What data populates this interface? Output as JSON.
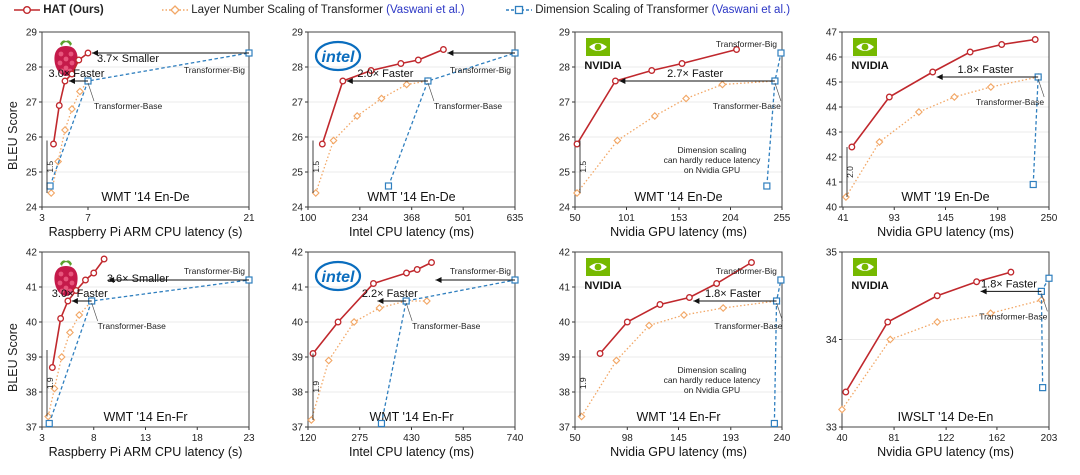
{
  "legend": {
    "hat_label": "HAT (Ours)",
    "layer_label": "Layer Number Scaling of Transformer",
    "dim_label": "Dimension Scaling of Transformer",
    "citation": "(Vaswani et al.)"
  },
  "colors": {
    "hat": "#c0282d",
    "layer": "#f2a766",
    "dim": "#2f7fbf"
  },
  "ylabel": "BLEU Score",
  "chart_data": [
    {
      "type": "line",
      "title": "WMT '14 En-De",
      "xlabel": "Raspberry Pi ARM CPU latency (s)",
      "xlim": [
        3,
        21
      ],
      "ylim": [
        24,
        29
      ],
      "xticks": [
        {
          "v": 3,
          "t": "3"
        },
        {
          "v": 7,
          "t": "7"
        },
        {
          "v": 21,
          "t": "21"
        }
      ],
      "yticks": [
        {
          "v": 24,
          "t": "24"
        },
        {
          "v": 25,
          "t": "25"
        },
        {
          "v": 26,
          "t": "26"
        },
        {
          "v": 27,
          "t": "27"
        },
        {
          "v": 28,
          "t": "28"
        },
        {
          "v": 29,
          "t": "29"
        }
      ],
      "logo": "raspberry-pi",
      "series": [
        {
          "name": "HAT (Ours)",
          "x": [
            4.0,
            4.5,
            5.0,
            5.6,
            6.2,
            7.0
          ],
          "y": [
            25.8,
            26.9,
            27.6,
            27.8,
            28.2,
            28.4
          ]
        },
        {
          "name": "Layer Number Scaling of Transformer",
          "x": [
            3.8,
            4.4,
            5.0,
            5.6,
            6.3,
            7.0
          ],
          "y": [
            24.4,
            25.3,
            26.2,
            26.8,
            27.3,
            27.6
          ]
        },
        {
          "name": "Dimension Scaling of Transformer",
          "x": [
            3.7,
            7.0,
            21.0
          ],
          "y": [
            24.6,
            27.6,
            28.4
          ]
        }
      ],
      "labels": [
        {
          "text": "Transformer-Base",
          "x": 7,
          "y": 27.6
        },
        {
          "text": "Transformer-Big",
          "x": 21,
          "y": 28.4
        }
      ],
      "annotations": [
        "3.0× Faster",
        "3.7× Smaller"
      ],
      "gain": "1.5"
    },
    {
      "type": "line",
      "title": "WMT '14 En-De",
      "xlabel": "Intel CPU latency (ms)",
      "xlim": [
        100,
        635
      ],
      "ylim": [
        24,
        29
      ],
      "xticks": [
        {
          "v": 100,
          "t": "100"
        },
        {
          "v": 234,
          "t": "234"
        },
        {
          "v": 368,
          "t": "368"
        },
        {
          "v": 501,
          "t": "501"
        },
        {
          "v": 635,
          "t": "635"
        }
      ],
      "yticks": [
        {
          "v": 24,
          "t": "24"
        },
        {
          "v": 25,
          "t": "25"
        },
        {
          "v": 26,
          "t": "26"
        },
        {
          "v": 27,
          "t": "27"
        },
        {
          "v": 28,
          "t": "28"
        },
        {
          "v": 29,
          "t": "29"
        }
      ],
      "logo": "intel",
      "series": [
        {
          "name": "HAT (Ours)",
          "x": [
            137,
            190,
            263,
            340,
            385,
            450
          ],
          "y": [
            25.8,
            27.6,
            27.9,
            28.1,
            28.2,
            28.5
          ]
        },
        {
          "name": "Layer Number Scaling of Transformer",
          "x": [
            120,
            166,
            227,
            290,
            355,
            410
          ],
          "y": [
            24.4,
            25.9,
            26.6,
            27.1,
            27.5,
            27.6
          ]
        },
        {
          "name": "Dimension Scaling of Transformer",
          "x": [
            308,
            410,
            635
          ],
          "y": [
            24.6,
            27.6,
            28.4
          ]
        }
      ],
      "labels": [
        {
          "text": "Transformer-Base",
          "x": 410,
          "y": 27.6
        },
        {
          "text": "Transformer-Big",
          "x": 635,
          "y": 28.4
        }
      ],
      "annotations": [
        "2.0× Faster"
      ],
      "gain": "1.5"
    },
    {
      "type": "line",
      "title": "WMT '14 En-De",
      "xlabel": "Nvidia GPU latency (ms)",
      "xlim": [
        50,
        255
      ],
      "ylim": [
        24,
        29
      ],
      "xticks": [
        {
          "v": 50,
          "t": "50"
        },
        {
          "v": 101,
          "t": "101"
        },
        {
          "v": 153,
          "t": "153"
        },
        {
          "v": 204,
          "t": "204"
        },
        {
          "v": 255,
          "t": "255"
        }
      ],
      "yticks": [
        {
          "v": 24,
          "t": "24"
        },
        {
          "v": 25,
          "t": "25"
        },
        {
          "v": 26,
          "t": "26"
        },
        {
          "v": 27,
          "t": "27"
        },
        {
          "v": 28,
          "t": "28"
        },
        {
          "v": 29,
          "t": "29"
        }
      ],
      "logo": "nvidia",
      "series": [
        {
          "name": "HAT (Ours)",
          "x": [
            52,
            90,
            126,
            156,
            210
          ],
          "y": [
            25.8,
            27.6,
            27.9,
            28.1,
            28.5
          ]
        },
        {
          "name": "Layer Number Scaling of Transformer",
          "x": [
            52,
            92,
            129,
            160,
            196,
            248
          ],
          "y": [
            24.4,
            25.9,
            26.6,
            27.1,
            27.5,
            27.6
          ]
        },
        {
          "name": "Dimension Scaling of Transformer",
          "x": [
            240,
            248,
            254
          ],
          "y": [
            24.6,
            27.6,
            28.4
          ]
        }
      ],
      "labels": [
        {
          "text": "Transformer-Base",
          "x": 248,
          "y": 27.6
        },
        {
          "text": "Transformer-Big",
          "x": 254,
          "y": 28.4
        }
      ],
      "annotations": [
        "2.7× Faster",
        "Dimension scaling",
        "can hardly reduce latency",
        "on Nvidia GPU"
      ],
      "gain": "1.5"
    },
    {
      "type": "line",
      "title": "WMT '19 En-De",
      "xlabel": "Nvidia GPU latency (ms)",
      "xlim": [
        40,
        250
      ],
      "ylim": [
        40,
        47
      ],
      "xticks": [
        {
          "v": 41,
          "t": "41"
        },
        {
          "v": 93,
          "t": "93"
        },
        {
          "v": 145,
          "t": "145"
        },
        {
          "v": 198,
          "t": "198"
        },
        {
          "v": 250,
          "t": "250"
        }
      ],
      "yticks": [
        {
          "v": 40,
          "t": "40"
        },
        {
          "v": 41,
          "t": "41"
        },
        {
          "v": 42,
          "t": "42"
        },
        {
          "v": 43,
          "t": "43"
        },
        {
          "v": 44,
          "t": "44"
        },
        {
          "v": 45,
          "t": "45"
        },
        {
          "v": 46,
          "t": "46"
        },
        {
          "v": 47,
          "t": "47"
        }
      ],
      "logo": "nvidia",
      "series": [
        {
          "name": "HAT (Ours)",
          "x": [
            50,
            88,
            132,
            170,
            202,
            236
          ],
          "y": [
            42.4,
            44.4,
            45.4,
            46.2,
            46.5,
            46.7
          ]
        },
        {
          "name": "Layer Number Scaling of Transformer",
          "x": [
            44,
            78,
            118,
            154,
            191,
            239
          ],
          "y": [
            40.4,
            42.6,
            43.8,
            44.4,
            44.8,
            45.2
          ]
        },
        {
          "name": "Dimension Scaling of Transformer",
          "x": [
            234,
            239
          ],
          "y": [
            40.9,
            45.2
          ]
        }
      ],
      "labels": [
        {
          "text": "Transformer-Base",
          "x": 239,
          "y": 45.2
        }
      ],
      "annotations": [
        "1.8× Faster"
      ],
      "gain": "2.0"
    },
    {
      "type": "line",
      "title": "WMT '14 En-Fr",
      "xlabel": "Raspberry Pi ARM CPU latency (s)",
      "xlim": [
        3,
        23
      ],
      "ylim": [
        37,
        42
      ],
      "xticks": [
        {
          "v": 3,
          "t": "3"
        },
        {
          "v": 8,
          "t": "8"
        },
        {
          "v": 13,
          "t": "13"
        },
        {
          "v": 18,
          "t": "18"
        },
        {
          "v": 23,
          "t": "23"
        }
      ],
      "yticks": [
        {
          "v": 37,
          "t": "37"
        },
        {
          "v": 38,
          "t": "38"
        },
        {
          "v": 39,
          "t": "39"
        },
        {
          "v": 40,
          "t": "40"
        },
        {
          "v": 41,
          "t": "41"
        },
        {
          "v": 42,
          "t": "42"
        }
      ],
      "logo": "raspberry-pi",
      "series": [
        {
          "name": "HAT (Ours)",
          "x": [
            4.0,
            4.8,
            5.5,
            6.3,
            7.2,
            8.0,
            9.0
          ],
          "y": [
            38.7,
            40.1,
            40.6,
            40.9,
            41.2,
            41.4,
            41.8
          ]
        },
        {
          "name": "Layer Number Scaling of Transformer",
          "x": [
            3.6,
            4.2,
            4.9,
            5.7,
            6.6,
            7.8
          ],
          "y": [
            37.3,
            38.1,
            39.0,
            39.7,
            40.2,
            40.6
          ]
        },
        {
          "name": "Dimension Scaling of Transformer",
          "x": [
            3.7,
            7.8,
            23.0
          ],
          "y": [
            37.1,
            40.6,
            41.2
          ]
        }
      ],
      "labels": [
        {
          "text": "Transformer-Base",
          "x": 7.8,
          "y": 40.6
        },
        {
          "text": "Transformer-Big",
          "x": 23,
          "y": 41.2
        }
      ],
      "annotations": [
        "3.0× Faster",
        "3.6× Smaller"
      ],
      "gain": "1.9"
    },
    {
      "type": "line",
      "title": "WMT '14 En-Fr",
      "xlabel": "Intel CPU latency (ms)",
      "xlim": [
        120,
        740
      ],
      "ylim": [
        37,
        42
      ],
      "xticks": [
        {
          "v": 120,
          "t": "120"
        },
        {
          "v": 275,
          "t": "275"
        },
        {
          "v": 430,
          "t": "430"
        },
        {
          "v": 585,
          "t": "585"
        },
        {
          "v": 740,
          "t": "740"
        }
      ],
      "yticks": [
        {
          "v": 37,
          "t": "37"
        },
        {
          "v": 38,
          "t": "38"
        },
        {
          "v": 39,
          "t": "39"
        },
        {
          "v": 40,
          "t": "40"
        },
        {
          "v": 41,
          "t": "41"
        },
        {
          "v": 42,
          "t": "42"
        }
      ],
      "logo": "intel",
      "series": [
        {
          "name": "HAT (Ours)",
          "x": [
            135,
            210,
            316,
            415,
            447,
            490
          ],
          "y": [
            39.1,
            40.0,
            41.1,
            41.4,
            41.5,
            41.7
          ]
        },
        {
          "name": "Layer Number Scaling of Transformer",
          "x": [
            130,
            182,
            258,
            334,
            414,
            476
          ],
          "y": [
            37.2,
            38.9,
            40.0,
            40.4,
            40.6,
            40.6
          ]
        },
        {
          "name": "Dimension Scaling of Transformer",
          "x": [
            340,
            414,
            740
          ],
          "y": [
            37.1,
            40.6,
            41.2
          ]
        }
      ],
      "labels": [
        {
          "text": "Transformer-Base",
          "x": 414,
          "y": 40.6
        },
        {
          "text": "Transformer-Big",
          "x": 740,
          "y": 41.2
        }
      ],
      "annotations": [
        "2.2× Faster"
      ],
      "gain": "1.9"
    },
    {
      "type": "line",
      "title": "WMT '14 En-Fr",
      "xlabel": "Nvidia GPU latency (ms)",
      "xlim": [
        50,
        240
      ],
      "ylim": [
        37,
        42
      ],
      "xticks": [
        {
          "v": 50,
          "t": "50"
        },
        {
          "v": 98,
          "t": "98"
        },
        {
          "v": 145,
          "t": "145"
        },
        {
          "v": 193,
          "t": "193"
        },
        {
          "v": 240,
          "t": "240"
        }
      ],
      "yticks": [
        {
          "v": 37,
          "t": "37"
        },
        {
          "v": 38,
          "t": "38"
        },
        {
          "v": 39,
          "t": "39"
        },
        {
          "v": 40,
          "t": "40"
        },
        {
          "v": 41,
          "t": "41"
        },
        {
          "v": 42,
          "t": "42"
        }
      ],
      "logo": "nvidia",
      "series": [
        {
          "name": "HAT (Ours)",
          "x": [
            73,
            98,
            128,
            155,
            180,
            212
          ],
          "y": [
            39.1,
            40.0,
            40.5,
            40.7,
            41.1,
            41.7
          ]
        },
        {
          "name": "Layer Number Scaling of Transformer",
          "x": [
            56,
            88,
            118,
            150,
            186,
            235
          ],
          "y": [
            37.3,
            38.9,
            39.9,
            40.2,
            40.4,
            40.6
          ]
        },
        {
          "name": "Dimension Scaling of Transformer",
          "x": [
            233,
            235,
            239
          ],
          "y": [
            37.1,
            40.6,
            41.2
          ]
        }
      ],
      "labels": [
        {
          "text": "Transformer-Base",
          "x": 235,
          "y": 40.6
        },
        {
          "text": "Transformer-Big",
          "x": 239,
          "y": 41.2
        }
      ],
      "annotations": [
        "1.8× Faster",
        "Dimension scaling",
        "can hardly reduce latency",
        "on Nvidia GPU"
      ],
      "gain": "1.9"
    },
    {
      "type": "line",
      "title": "IWSLT '14 De-En",
      "xlabel": "Nvidia GPU latency (ms)",
      "xlim": [
        40,
        203
      ],
      "ylim": [
        33,
        35
      ],
      "xticks": [
        {
          "v": 40,
          "t": "40"
        },
        {
          "v": 81,
          "t": "81"
        },
        {
          "v": 122,
          "t": "122"
        },
        {
          "v": 162,
          "t": "162"
        },
        {
          "v": 203,
          "t": "203"
        }
      ],
      "yticks": [
        {
          "v": 33,
          "t": "33"
        },
        {
          "v": 34,
          "t": "34"
        },
        {
          "v": 35,
          "t": "35"
        }
      ],
      "logo": "nvidia",
      "series": [
        {
          "name": "HAT (Ours)",
          "x": [
            43,
            76,
            115,
            146,
            173
          ],
          "y": [
            33.4,
            34.2,
            34.5,
            34.66,
            34.77
          ]
        },
        {
          "name": "Layer Number Scaling of Transformer",
          "x": [
            40,
            78,
            115,
            157,
            197
          ],
          "y": [
            33.2,
            34.0,
            34.2,
            34.3,
            34.45
          ]
        },
        {
          "name": "Dimension Scaling of Transformer",
          "x": [
            198,
            197,
            203
          ],
          "y": [
            33.45,
            34.55,
            34.7
          ]
        }
      ],
      "labels": [
        {
          "text": "Transformer-Base",
          "x": 197,
          "y": 34.55
        }
      ],
      "annotations": [
        "1.8× Faster"
      ],
      "gain": ""
    }
  ]
}
